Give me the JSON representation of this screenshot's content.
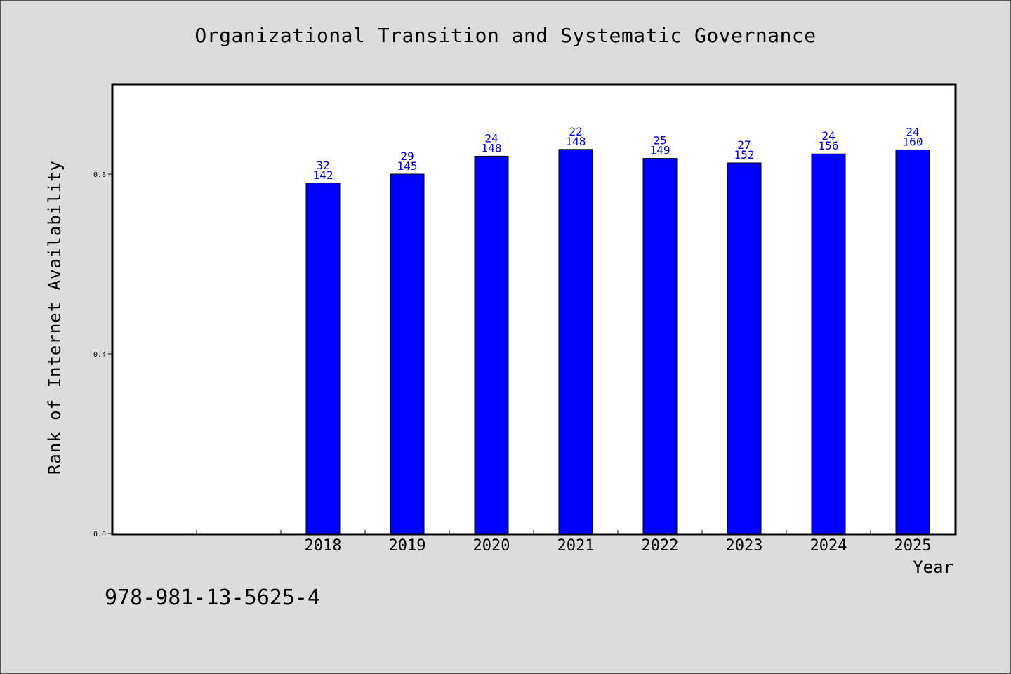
{
  "title": "Organizational Transition and Systematic Governance",
  "footer_code": "978-981-13-5625-4",
  "colors": {
    "bar": "#0000ff",
    "label": "#0000cc",
    "plot_bg": "#ffffff",
    "page_bg": "#dcdcdc"
  },
  "chart_data": {
    "type": "bar",
    "title": "Organizational Transition and Systematic Governance",
    "xlabel": "Year",
    "ylabel": "Rank of Internet Availability",
    "categories": [
      "",
      "",
      "2018",
      "2019",
      "2020",
      "2021",
      "2022",
      "2023",
      "2024",
      "2025"
    ],
    "series": [
      {
        "values": [
          null,
          null,
          0.78,
          0.8,
          0.84,
          0.855,
          0.835,
          0.825,
          0.845,
          0.854
        ],
        "labels_top": [
          "",
          "",
          "32",
          "29",
          "24",
          "22",
          "25",
          "27",
          "24",
          "24"
        ],
        "labels_bottom": [
          "",
          "",
          "142",
          "145",
          "148",
          "148",
          "149",
          "152",
          "156",
          "160"
        ]
      }
    ],
    "ylim": [
      0,
      1.0
    ],
    "yticks": [
      0.0,
      0.4,
      0.8
    ],
    "ytick_labels": [
      "0.0",
      "0.4",
      "0.8"
    ],
    "grid": false,
    "legend": "none"
  }
}
